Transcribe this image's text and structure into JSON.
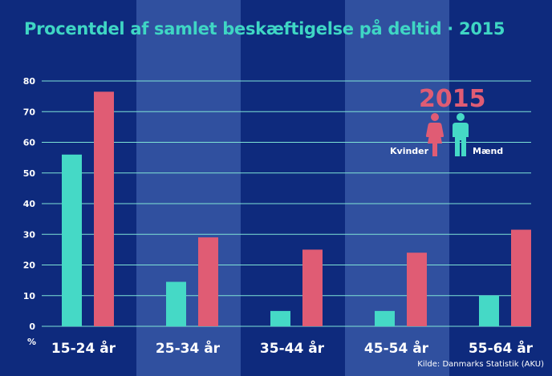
{
  "title": "Procentdel af samlet beskæftigelse på deltid · 2015",
  "legend": {
    "year": "2015",
    "women_label": "Kvinder",
    "men_label": "Mænd"
  },
  "source": "Kilde: Danmarks Statistik (AKU)",
  "colors": {
    "background": "#0e2a7d",
    "band": "#3a5aa8",
    "women": "#e05c74",
    "men": "#45d9c6",
    "gridline": "#7fe3d6",
    "text": "#ffffff",
    "title": "#3fd6c4"
  },
  "chart_data": {
    "type": "bar",
    "title": "Procentdel af samlet beskæftigelse på deltid · 2015",
    "categories": [
      "15-24 år",
      "25-34 år",
      "35-44 år",
      "45-54 år",
      "55-64 år"
    ],
    "series": [
      {
        "name": "Mænd",
        "values": [
          56,
          14.5,
          5,
          5,
          10
        ]
      },
      {
        "name": "Kvinder",
        "values": [
          76.5,
          29,
          25,
          24,
          31.5
        ]
      }
    ],
    "ylabel": "%",
    "ylim": [
      0,
      80
    ],
    "yticks": [
      0,
      10,
      20,
      30,
      40,
      50,
      60,
      70,
      80
    ],
    "grid": true,
    "legend_position": "top-right"
  }
}
